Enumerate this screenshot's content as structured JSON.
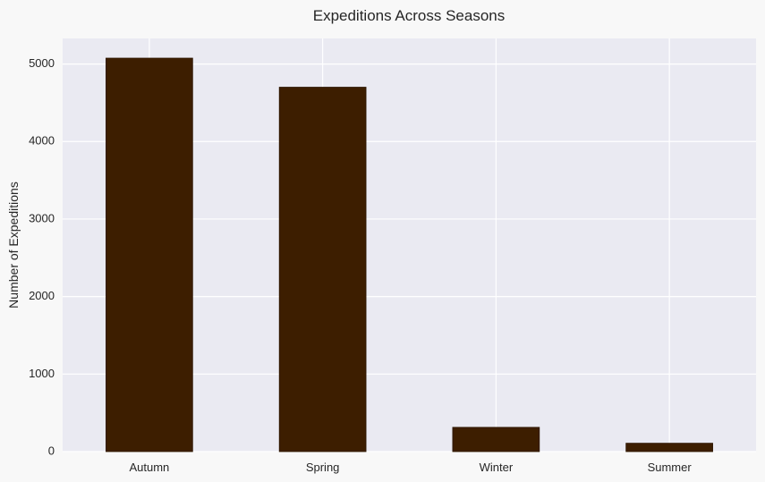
{
  "chart_data": {
    "type": "bar",
    "title": "Expeditions Across Seasons",
    "xlabel": "",
    "ylabel": "Number of Expeditions",
    "categories": [
      "Autumn",
      "Spring",
      "Winter",
      "Summer"
    ],
    "values": [
      5076,
      4701,
      313,
      108
    ],
    "ylim": [
      0,
      5330
    ],
    "yticks": [
      0,
      1000,
      2000,
      3000,
      4000,
      5000
    ],
    "grid": true,
    "colors": {
      "bar": "#3d1e00",
      "bar_edge": "#2a1400",
      "plot_background": "#eaeaf2",
      "page_background": "#f8f8f8",
      "grid": "#ffffff",
      "text": "#262626"
    }
  }
}
